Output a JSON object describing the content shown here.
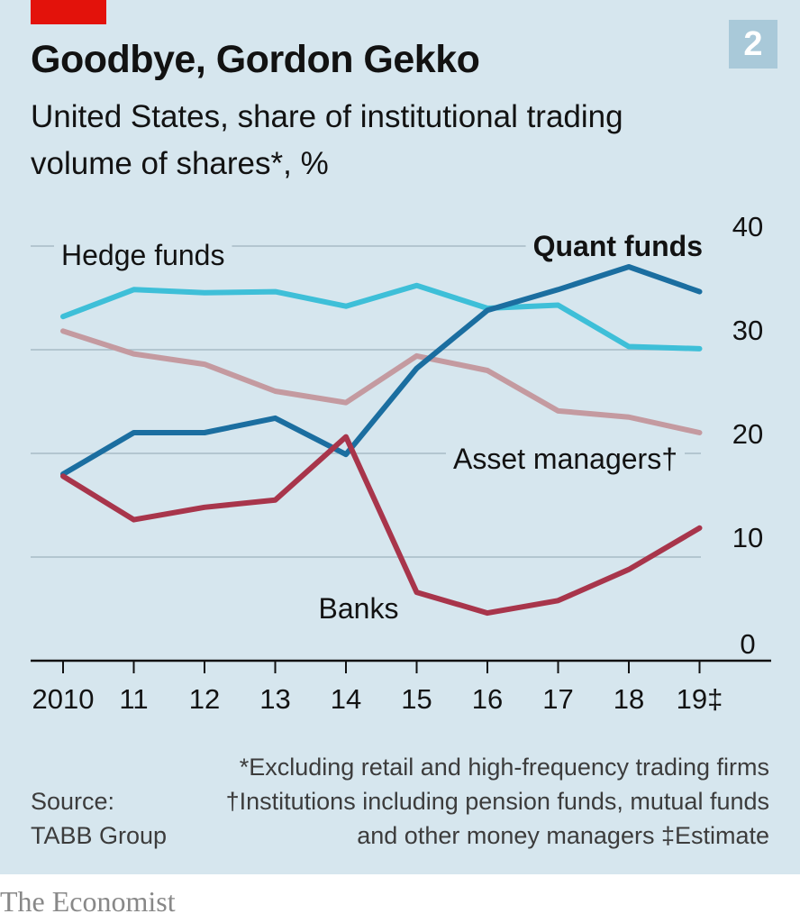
{
  "header": {
    "badge": "2",
    "title": "Goodbye, Gordon Gekko",
    "subtitle": "United States, share of institutional trading volume of shares*, %"
  },
  "chart_data": {
    "type": "line",
    "x": [
      "2010",
      "11",
      "12",
      "13",
      "14",
      "15",
      "16",
      "17",
      "18",
      "19‡"
    ],
    "ylim": [
      0,
      40
    ],
    "yticks": [
      0,
      10,
      20,
      30,
      40
    ],
    "grid": true,
    "series": [
      {
        "name": "Hedge funds",
        "color": "#3ebfd8",
        "values": [
          33.2,
          35.8,
          35.5,
          35.6,
          34.2,
          36.2,
          34.0,
          34.3,
          30.3,
          30.1
        ]
      },
      {
        "name": "Asset managers†",
        "color": "#c49aa0",
        "values": [
          31.8,
          29.6,
          28.6,
          26.0,
          24.9,
          29.4,
          28.0,
          24.1,
          23.5,
          22.0
        ]
      },
      {
        "name": "Quant funds",
        "color": "#1b6ea0",
        "values": [
          18.0,
          22.0,
          22.0,
          23.4,
          19.9,
          28.2,
          33.8,
          35.8,
          38.0,
          35.6
        ]
      },
      {
        "name": "Banks",
        "color": "#a8354b",
        "values": [
          17.8,
          13.6,
          14.8,
          15.5,
          21.6,
          6.6,
          4.6,
          5.8,
          8.8,
          12.8
        ]
      }
    ]
  },
  "footnotes": [
    "*Excluding retail and high-frequency trading firms",
    "†Institutions including pension funds, mutual funds",
    "and other money managers   ‡Estimate"
  ],
  "source": [
    "Source:",
    "TABB Group"
  ],
  "brand": "The Economist"
}
